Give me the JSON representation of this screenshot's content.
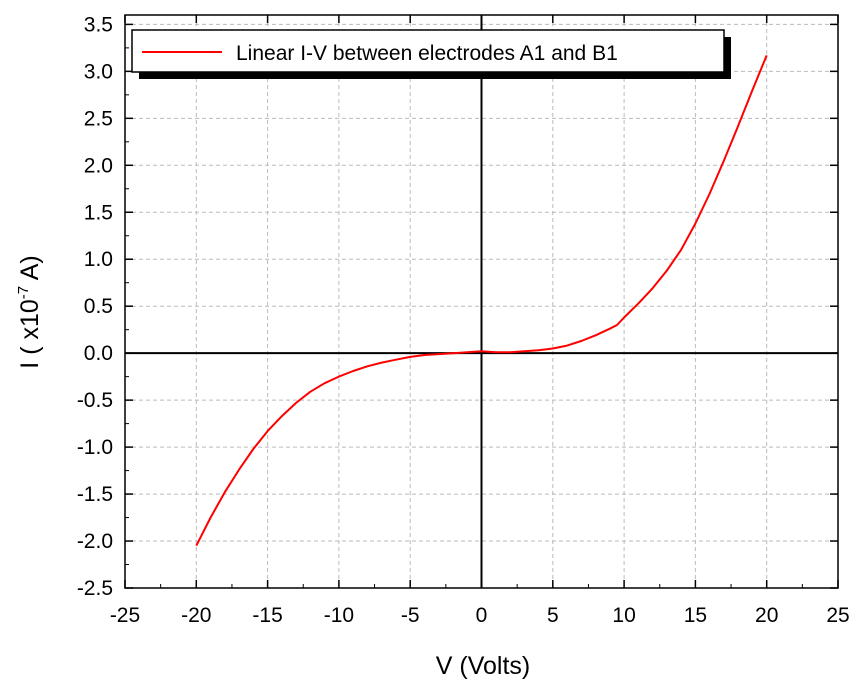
{
  "chart_data": {
    "type": "line",
    "xlabel": "V (Volts)",
    "ylabel": {
      "prefix": "I ( x10",
      "exponent": "-7",
      "suffix": " A)"
    },
    "xlim": [
      -25,
      25
    ],
    "ylim": [
      -2.5,
      3.6
    ],
    "xticks": [
      -25,
      -20,
      -15,
      -10,
      -5,
      0,
      5,
      10,
      15,
      20,
      25
    ],
    "yticks": [
      -2.5,
      -2.0,
      -1.5,
      -1.0,
      -0.5,
      0.0,
      0.5,
      1.0,
      1.5,
      2.0,
      2.5,
      3.0,
      3.5
    ],
    "grid": true,
    "legend_position": "top-left",
    "series": [
      {
        "name": "Linear I-V between electrodes A1 and B1",
        "color": "#ff0000",
        "x": [
          -20,
          -19,
          -18,
          -17,
          -16,
          -15,
          -14,
          -13,
          -12,
          -11,
          -10,
          -9,
          -8,
          -7,
          -6,
          -5,
          -4,
          -3,
          -2,
          -1,
          0,
          1,
          2,
          3,
          4,
          5,
          6,
          7,
          8,
          9,
          9.5,
          10,
          11,
          12,
          13,
          14,
          15,
          16,
          17,
          18,
          19,
          20
        ],
        "y": [
          -2.05,
          -1.75,
          -1.48,
          -1.24,
          -1.02,
          -0.83,
          -0.67,
          -0.53,
          -0.41,
          -0.32,
          -0.25,
          -0.19,
          -0.14,
          -0.1,
          -0.07,
          -0.04,
          -0.02,
          -0.01,
          0.0,
          0.01,
          0.02,
          0.01,
          0.01,
          0.02,
          0.03,
          0.05,
          0.08,
          0.13,
          0.19,
          0.26,
          0.3,
          0.38,
          0.53,
          0.69,
          0.88,
          1.1,
          1.38,
          1.7,
          2.05,
          2.42,
          2.8,
          3.17
        ]
      }
    ]
  }
}
